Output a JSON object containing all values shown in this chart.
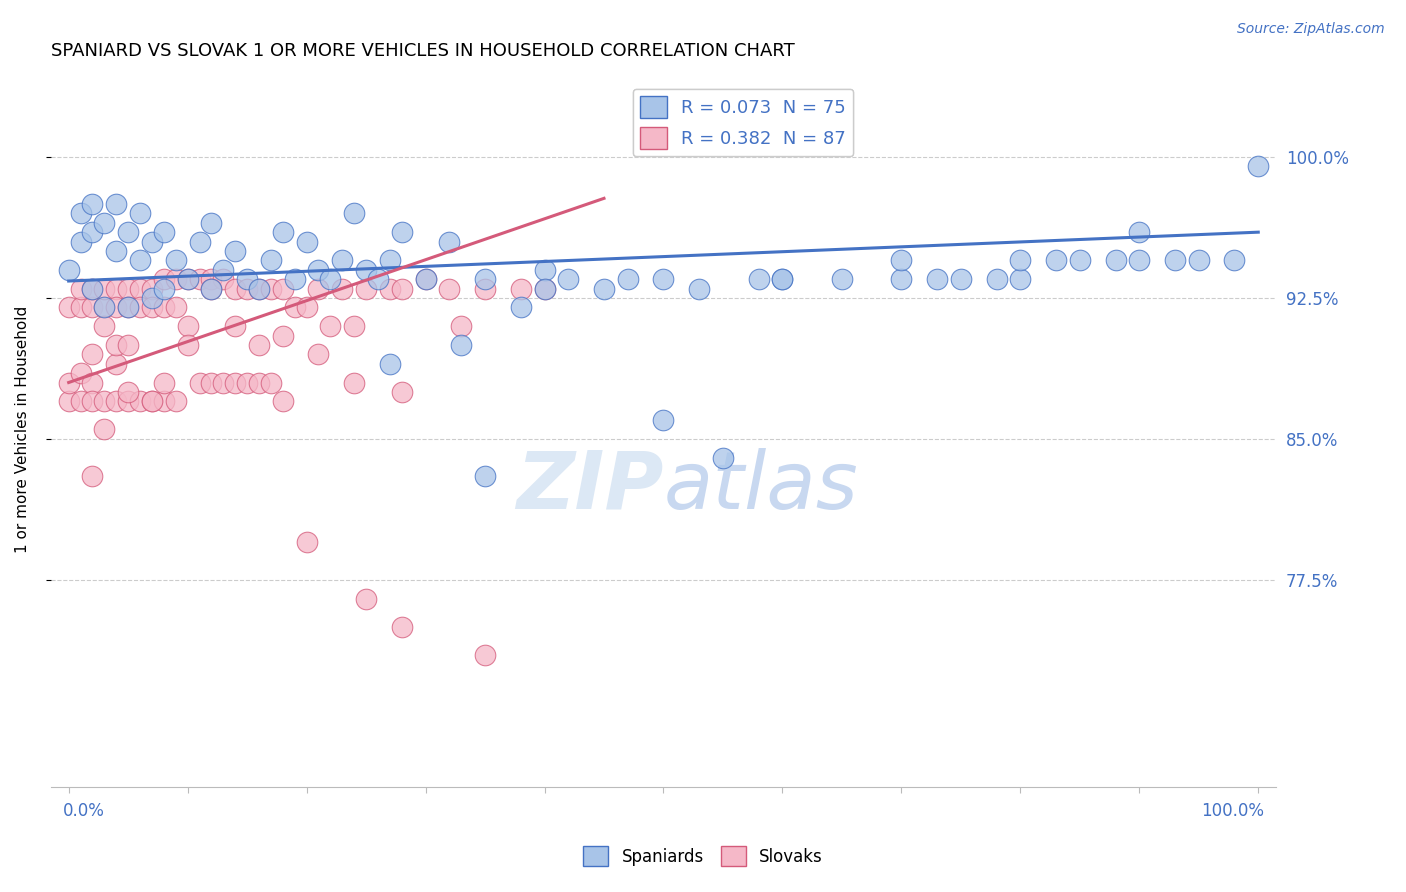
{
  "title": "SPANIARD VS SLOVAK 1 OR MORE VEHICLES IN HOUSEHOLD CORRELATION CHART",
  "source_text": "Source: ZipAtlas.com",
  "ylabel": "1 or more Vehicles in Household",
  "ytick_vals": [
    0.775,
    0.85,
    0.925,
    1.0
  ],
  "ytick_labels": [
    "77.5%",
    "85.0%",
    "92.5%",
    "100.0%"
  ],
  "ylim": [
    0.665,
    1.045
  ],
  "xlim": [
    -0.015,
    1.015
  ],
  "legend_blue_text": "R = 0.073  N = 75",
  "legend_pink_text": "R = 0.382  N = 87",
  "color_blue_fill": "#a8c4e8",
  "color_pink_fill": "#f5b8c8",
  "color_blue_edge": "#4472c4",
  "color_pink_edge": "#d45a7a",
  "color_blue_line": "#4472c4",
  "color_pink_line": "#d45a7a",
  "color_legend_text": "#4472c4",
  "watermark_color": "#dce8f5",
  "grid_color": "#cccccc",
  "title_fontsize": 13,
  "tick_label_fontsize": 12,
  "blue_line_x0": 0.0,
  "blue_line_x1": 1.0,
  "blue_line_y0": 0.934,
  "blue_line_y1": 0.96,
  "pink_line_x0": 0.0,
  "pink_line_x1": 0.45,
  "pink_line_y0": 0.88,
  "pink_line_y1": 0.978,
  "blue_x": [
    0.0,
    0.01,
    0.01,
    0.02,
    0.02,
    0.02,
    0.03,
    0.03,
    0.04,
    0.04,
    0.05,
    0.05,
    0.06,
    0.06,
    0.07,
    0.07,
    0.08,
    0.08,
    0.09,
    0.1,
    0.11,
    0.12,
    0.12,
    0.13,
    0.14,
    0.15,
    0.16,
    0.17,
    0.18,
    0.19,
    0.2,
    0.21,
    0.22,
    0.23,
    0.24,
    0.25,
    0.26,
    0.27,
    0.28,
    0.3,
    0.32,
    0.33,
    0.35,
    0.38,
    0.4,
    0.42,
    0.45,
    0.47,
    0.5,
    0.53,
    0.55,
    0.58,
    0.6,
    0.65,
    0.7,
    0.73,
    0.75,
    0.78,
    0.8,
    0.83,
    0.85,
    0.88,
    0.9,
    0.93,
    0.95,
    0.98,
    1.0,
    0.27,
    0.35,
    0.4,
    0.5,
    0.6,
    0.7,
    0.8,
    0.9
  ],
  "blue_y": [
    0.94,
    0.955,
    0.97,
    0.96,
    0.975,
    0.93,
    0.965,
    0.92,
    0.95,
    0.975,
    0.96,
    0.92,
    0.945,
    0.97,
    0.955,
    0.925,
    0.96,
    0.93,
    0.945,
    0.935,
    0.955,
    0.93,
    0.965,
    0.94,
    0.95,
    0.935,
    0.93,
    0.945,
    0.96,
    0.935,
    0.955,
    0.94,
    0.935,
    0.945,
    0.97,
    0.94,
    0.935,
    0.945,
    0.96,
    0.935,
    0.955,
    0.9,
    0.935,
    0.92,
    0.94,
    0.935,
    0.93,
    0.935,
    0.935,
    0.93,
    0.84,
    0.935,
    0.935,
    0.935,
    0.935,
    0.935,
    0.935,
    0.935,
    0.935,
    0.945,
    0.945,
    0.945,
    0.945,
    0.945,
    0.945,
    0.945,
    0.995,
    0.89,
    0.83,
    0.93,
    0.86,
    0.935,
    0.945,
    0.945,
    0.96
  ],
  "pink_x": [
    0.0,
    0.0,
    0.0,
    0.01,
    0.01,
    0.01,
    0.01,
    0.02,
    0.02,
    0.02,
    0.02,
    0.02,
    0.03,
    0.03,
    0.03,
    0.03,
    0.04,
    0.04,
    0.04,
    0.04,
    0.04,
    0.05,
    0.05,
    0.05,
    0.05,
    0.06,
    0.06,
    0.06,
    0.07,
    0.07,
    0.07,
    0.08,
    0.08,
    0.08,
    0.09,
    0.09,
    0.09,
    0.1,
    0.1,
    0.11,
    0.11,
    0.12,
    0.12,
    0.13,
    0.13,
    0.14,
    0.14,
    0.15,
    0.15,
    0.16,
    0.16,
    0.17,
    0.17,
    0.18,
    0.18,
    0.19,
    0.2,
    0.21,
    0.22,
    0.23,
    0.24,
    0.25,
    0.27,
    0.28,
    0.3,
    0.32,
    0.35,
    0.38,
    0.4,
    0.14,
    0.1,
    0.08,
    0.07,
    0.05,
    0.03,
    0.02,
    0.12,
    0.16,
    0.18,
    0.21,
    0.24,
    0.28,
    0.33,
    0.2,
    0.25,
    0.28,
    0.35
  ],
  "pink_y": [
    0.87,
    0.92,
    0.88,
    0.885,
    0.92,
    0.93,
    0.87,
    0.92,
    0.93,
    0.88,
    0.895,
    0.87,
    0.92,
    0.93,
    0.91,
    0.87,
    0.93,
    0.92,
    0.89,
    0.87,
    0.9,
    0.93,
    0.92,
    0.9,
    0.87,
    0.93,
    0.92,
    0.87,
    0.93,
    0.92,
    0.87,
    0.935,
    0.92,
    0.87,
    0.935,
    0.92,
    0.87,
    0.935,
    0.91,
    0.935,
    0.88,
    0.935,
    0.88,
    0.935,
    0.88,
    0.93,
    0.88,
    0.93,
    0.88,
    0.93,
    0.88,
    0.93,
    0.88,
    0.93,
    0.87,
    0.92,
    0.92,
    0.93,
    0.91,
    0.93,
    0.91,
    0.93,
    0.93,
    0.93,
    0.935,
    0.93,
    0.93,
    0.93,
    0.93,
    0.91,
    0.9,
    0.88,
    0.87,
    0.875,
    0.855,
    0.83,
    0.93,
    0.9,
    0.905,
    0.895,
    0.88,
    0.875,
    0.91,
    0.795,
    0.765,
    0.75,
    0.735
  ]
}
